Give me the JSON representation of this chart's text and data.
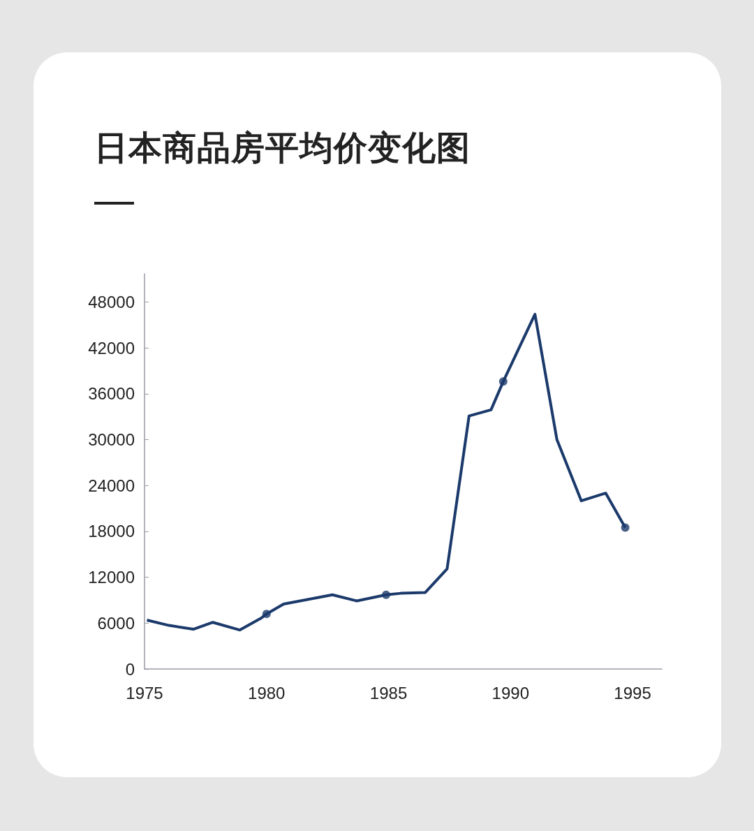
{
  "chart_data": {
    "type": "line",
    "title": "日本商品房平均价变化图",
    "xlim": [
      1975,
      1996.2
    ],
    "xticks": [
      1975,
      1980,
      1985,
      1990,
      1995
    ],
    "ylim": [
      0,
      51700
    ],
    "yticks": [
      0,
      6000,
      12000,
      18000,
      24000,
      30000,
      36000,
      42000,
      48000
    ],
    "grid": false,
    "series": [
      {
        "color": "#1b3a6b",
        "marker": "none",
        "x": [
          1975.1,
          1976,
          1977,
          1977.8,
          1978.9,
          1979.8,
          1980,
          1980.7,
          1982.7,
          1983.7,
          1984.9,
          1985.5,
          1986.5,
          1987.4,
          1988.3,
          1989.2,
          1989.7,
          1991,
          1991.9,
          1992.9,
          1993.9,
          1994.7
        ],
        "values": [
          6400,
          5700,
          5200,
          6100,
          5100,
          6700,
          7200,
          8500,
          9700,
          8900,
          9700,
          9900,
          10000,
          13100,
          33100,
          33900,
          37600,
          46400,
          30000,
          22000,
          23000,
          18500
        ]
      },
      {
        "type": "scatter",
        "color": "#1b3a6b",
        "marker": "circle",
        "x": [
          1980,
          1984.9,
          1989.7,
          1994.7
        ],
        "values": [
          7200,
          9700,
          37600,
          18500
        ]
      }
    ]
  }
}
